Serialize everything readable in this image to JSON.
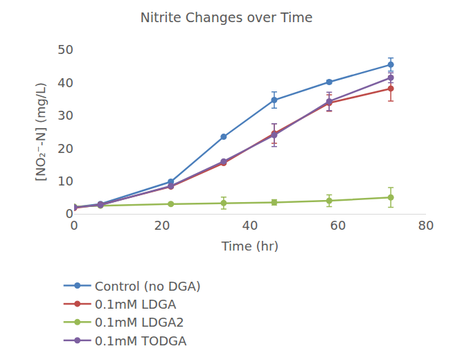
{
  "chart_data": {
    "type": "line",
    "title": "Nitrite Changes over Time",
    "x_label": "Time (hr)",
    "y_label": "[NO₂⁻-N] (mg/L)",
    "x": [
      0,
      6,
      22,
      34,
      45.5,
      58,
      72
    ],
    "xlim": [
      0,
      80
    ],
    "xticks": [
      0,
      20,
      40,
      60,
      80
    ],
    "ylim": [
      0,
      50
    ],
    "yticks": [
      0,
      10,
      20,
      30,
      40,
      50
    ],
    "grid": false,
    "legend": "bottom",
    "marker": "circle",
    "line_style": "solid",
    "series": [
      {
        "name": "Control (no DGA)",
        "color": "#4a7ebb",
        "values": [
          2,
          3,
          9.8,
          23.5,
          34.7,
          40.2,
          45.5
        ],
        "errors": [
          0.3,
          0.3,
          0.3,
          0.3,
          2.5,
          0.5,
          2
        ]
      },
      {
        "name": "0.1mM LDGA",
        "color": "#be4b48",
        "values": [
          1.8,
          2.8,
          8.3,
          15.5,
          24.5,
          33.8,
          38.2
        ],
        "errors": [
          0.3,
          0.3,
          0.3,
          0.3,
          3,
          2.5,
          3.8
        ]
      },
      {
        "name": "0.1mM LDGA2",
        "color": "#98b954",
        "values": [
          2.2,
          2.5,
          3,
          3.3,
          3.5,
          4,
          5
        ],
        "errors": [
          0.3,
          0.3,
          0.3,
          1.8,
          0.8,
          1.8,
          3
        ]
      },
      {
        "name": "0.1mM TODGA",
        "color": "#7d60a0",
        "values": [
          2,
          2.7,
          8.5,
          16,
          24,
          34.3,
          41.5
        ],
        "errors": [
          0.3,
          0.3,
          0.3,
          0.3,
          3.5,
          2.8,
          1.5
        ]
      }
    ]
  }
}
